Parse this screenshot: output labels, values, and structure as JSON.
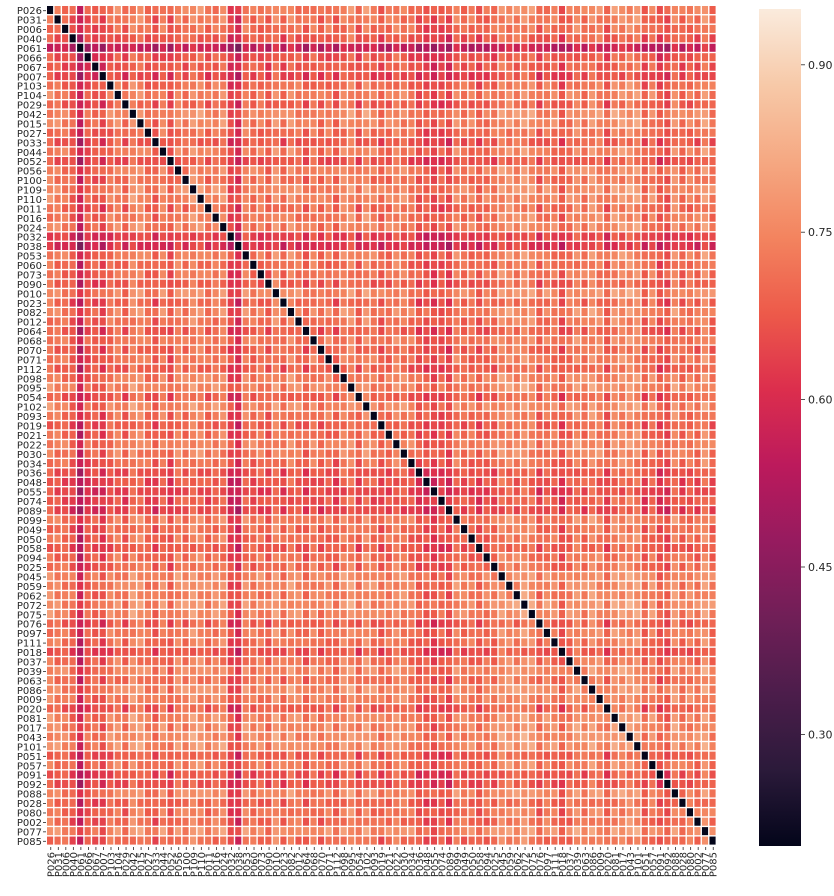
{
  "chart_data": {
    "type": "heatmap",
    "title": "",
    "xlabel": "",
    "ylabel": "",
    "grid": false,
    "cell_separator_color": "#ffffff",
    "colormap": "rocket",
    "colormap_stops": [
      "#03051a",
      "#2b1a3a",
      "#4c1d4b",
      "#701f57",
      "#961b5f",
      "#bc1a5c",
      "#dc2e4d",
      "#ed5a4a",
      "#f3845f",
      "#f5a882",
      "#f7c9a8",
      "#faebdd"
    ],
    "vmin": 0.2,
    "vmax": 0.95,
    "colorbar": {
      "placement": "right",
      "ticks": [
        0.3,
        0.45,
        0.6,
        0.75,
        0.9
      ],
      "tick_labels": [
        "0.30",
        "0.45",
        "0.60",
        "0.75",
        "0.90"
      ]
    },
    "diagonal_value": 0.2,
    "labels": [
      "P026",
      "P031",
      "P006",
      "P040",
      "P061",
      "P066",
      "P067",
      "P007",
      "P103",
      "P104",
      "P029",
      "P042",
      "P015",
      "P027",
      "P033",
      "P044",
      "P052",
      "P056",
      "P100",
      "P109",
      "P110",
      "P011",
      "P016",
      "P024",
      "P032",
      "P038",
      "P053",
      "P060",
      "P073",
      "P090",
      "P010",
      "P023",
      "P082",
      "P012",
      "P064",
      "P068",
      "P070",
      "P071",
      "P112",
      "P098",
      "P095",
      "P054",
      "P102",
      "P093",
      "P019",
      "P021",
      "P022",
      "P030",
      "P034",
      "P036",
      "P048",
      "P055",
      "P074",
      "P089",
      "P099",
      "P049",
      "P050",
      "P058",
      "P094",
      "P025",
      "P045",
      "P059",
      "P062",
      "P072",
      "P075",
      "P076",
      "P097",
      "P111",
      "P018",
      "P037",
      "P039",
      "P063",
      "P086",
      "P009",
      "P020",
      "P081",
      "P017",
      "P043",
      "P101",
      "P051",
      "P057",
      "P091",
      "P092",
      "P088",
      "P028",
      "P080",
      "P002",
      "P077",
      "P085"
    ],
    "levels": [
      0.74,
      0.72,
      0.7,
      0.64,
      0.4,
      0.62,
      0.64,
      0.58,
      0.7,
      0.74,
      0.66,
      0.78,
      0.76,
      0.7,
      0.64,
      0.74,
      0.62,
      0.76,
      0.72,
      0.78,
      0.76,
      0.7,
      0.74,
      0.76,
      0.56,
      0.5,
      0.74,
      0.7,
      0.72,
      0.66,
      0.78,
      0.68,
      0.76,
      0.72,
      0.66,
      0.74,
      0.68,
      0.72,
      0.66,
      0.76,
      0.78,
      0.66,
      0.78,
      0.72,
      0.66,
      0.7,
      0.76,
      0.74,
      0.7,
      0.62,
      0.62,
      0.58,
      0.62,
      0.58,
      0.74,
      0.7,
      0.7,
      0.64,
      0.7,
      0.7,
      0.78,
      0.78,
      0.76,
      0.8,
      0.78,
      0.66,
      0.74,
      0.72,
      0.62,
      0.72,
      0.78,
      0.72,
      0.8,
      0.76,
      0.66,
      0.78,
      0.78,
      0.8,
      0.8,
      0.66,
      0.74,
      0.62,
      0.62,
      0.78,
      0.68,
      0.72,
      0.7,
      0.8,
      0.7
    ],
    "value_rule": "cell(i,j) = mean(levels[i], levels[j]); diagonal = diagonal_value"
  }
}
